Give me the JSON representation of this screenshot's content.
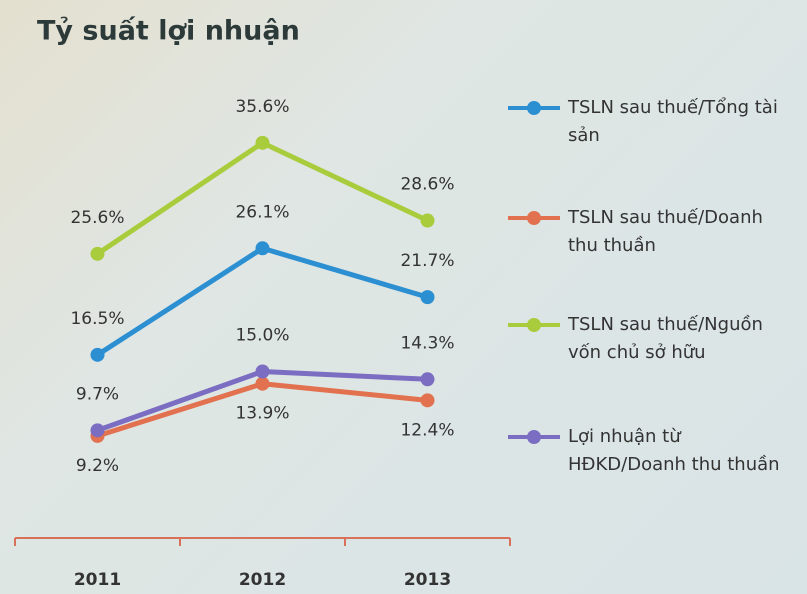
{
  "chart_data": {
    "type": "line",
    "title": "Tỷ suất lợi nhuận",
    "categories": [
      "2011",
      "2012",
      "2013"
    ],
    "ylim": [
      0,
      40
    ],
    "series": [
      {
        "name": "TSLN sau thuế/Tổng tài sản",
        "color": "#2b8fd2",
        "values": [
          16.5,
          26.1,
          21.7
        ],
        "value_labels": [
          "16.5%",
          "26.1%",
          "21.7%"
        ]
      },
      {
        "name": "TSLN sau thuế/Doanh thu thuần",
        "color": "#e2714f",
        "values": [
          9.2,
          13.9,
          12.4
        ],
        "value_labels": [
          "9.2%",
          "13.9%",
          "12.4%"
        ]
      },
      {
        "name": "TSLN sau thuế/Nguồn vốn chủ sở hữu",
        "color": "#a9cc3c",
        "values": [
          25.6,
          35.6,
          28.6
        ],
        "value_labels": [
          "25.6%",
          "35.6%",
          "28.6%"
        ]
      },
      {
        "name": "Lợi nhuận từ HĐKD/Doanh thu thuần",
        "color": "#7b6dc2",
        "values": [
          9.7,
          15.0,
          14.3
        ],
        "value_labels": [
          "9.7%",
          "15.0%",
          "14.3%"
        ]
      }
    ]
  }
}
